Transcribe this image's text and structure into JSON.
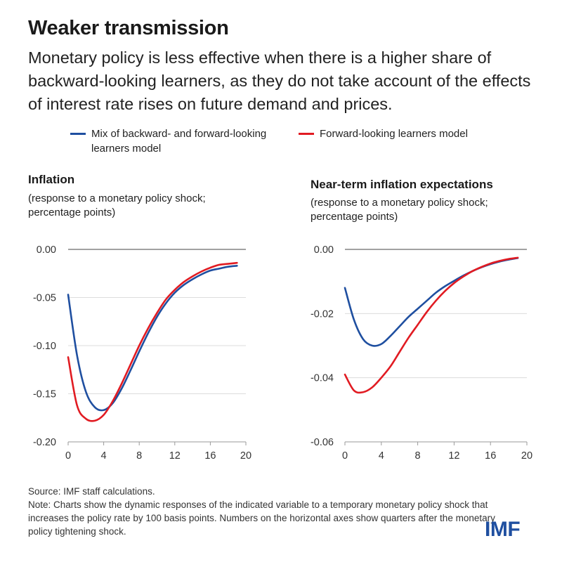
{
  "title": "Weaker transmission",
  "subtitle": "Monetary policy is less effective when there is a higher share of backward-looking learners, as they do not take account of the effects of interest rate rises on future demand and prices.",
  "legend": [
    {
      "label": "Mix of backward- and forward-looking learners model",
      "color": "#1f4fa0"
    },
    {
      "label": "Forward-looking learners model",
      "color": "#e11b22"
    }
  ],
  "panels": [
    {
      "title": "Inflation",
      "subtitle": "(response to a monetary policy shock; percentage points)"
    },
    {
      "title": "Near-term inflation expectations",
      "subtitle": "(response to a monetary policy shock; percentage points)"
    }
  ],
  "chart_data": [
    {
      "type": "line",
      "title": "Inflation",
      "ylabel": "(response to a monetary policy shock; percentage points)",
      "xlim": [
        0,
        20
      ],
      "ylim": [
        -0.2,
        0.0
      ],
      "xticks": [
        0,
        4,
        8,
        12,
        16,
        20
      ],
      "xtick_labels": [
        "0",
        "4",
        "8",
        "12",
        "16",
        "20"
      ],
      "yticks": [
        0.0,
        -0.05,
        -0.1,
        -0.15,
        -0.2
      ],
      "ytick_labels": [
        "0.00",
        "-0.05",
        "-0.10",
        "-0.15",
        "-0.20"
      ],
      "grid": true,
      "x": [
        0,
        1,
        2,
        3,
        4,
        5,
        6,
        7,
        8,
        9,
        10,
        11,
        12,
        13,
        14,
        15,
        16,
        17,
        18,
        19
      ],
      "series": [
        {
          "name": "Mix of backward- and forward-looking learners model",
          "color": "#1f4fa0",
          "values": [
            -0.047,
            -0.11,
            -0.148,
            -0.164,
            -0.167,
            -0.16,
            -0.145,
            -0.126,
            -0.106,
            -0.087,
            -0.07,
            -0.056,
            -0.045,
            -0.037,
            -0.031,
            -0.026,
            -0.022,
            -0.02,
            -0.018,
            -0.017
          ]
        },
        {
          "name": "Forward-looking learners model",
          "color": "#e11b22",
          "values": [
            -0.112,
            -0.162,
            -0.176,
            -0.178,
            -0.172,
            -0.158,
            -0.14,
            -0.12,
            -0.1,
            -0.082,
            -0.066,
            -0.052,
            -0.042,
            -0.034,
            -0.028,
            -0.023,
            -0.019,
            -0.016,
            -0.015,
            -0.014
          ]
        }
      ]
    },
    {
      "type": "line",
      "title": "Near-term inflation expectations",
      "ylabel": "(response to a monetary policy shock; percentage points)",
      "xlim": [
        0,
        20
      ],
      "ylim": [
        -0.06,
        0.0
      ],
      "xticks": [
        0,
        4,
        8,
        12,
        16,
        20
      ],
      "xtick_labels": [
        "0",
        "4",
        "8",
        "12",
        "16",
        "20"
      ],
      "yticks": [
        0.0,
        -0.02,
        -0.04,
        -0.06
      ],
      "ytick_labels": [
        "0.00",
        "-0.02",
        "-0.04",
        "-0.06"
      ],
      "grid": true,
      "x": [
        0,
        1,
        2,
        3,
        4,
        5,
        6,
        7,
        8,
        9,
        10,
        11,
        12,
        13,
        14,
        15,
        16,
        17,
        18,
        19
      ],
      "series": [
        {
          "name": "Mix of backward- and forward-looking learners model",
          "color": "#1f4fa0",
          "values": [
            -0.012,
            -0.022,
            -0.028,
            -0.03,
            -0.0295,
            -0.027,
            -0.024,
            -0.021,
            -0.0185,
            -0.016,
            -0.0135,
            -0.0115,
            -0.0098,
            -0.0082,
            -0.0068,
            -0.0056,
            -0.0046,
            -0.0038,
            -0.0032,
            -0.0027
          ]
        },
        {
          "name": "Forward-looking learners model",
          "color": "#e11b22",
          "values": [
            -0.039,
            -0.044,
            -0.0445,
            -0.043,
            -0.04,
            -0.0365,
            -0.032,
            -0.0275,
            -0.0235,
            -0.0195,
            -0.016,
            -0.013,
            -0.0105,
            -0.0085,
            -0.0068,
            -0.0055,
            -0.0044,
            -0.0036,
            -0.003,
            -0.0026
          ]
        }
      ]
    }
  ],
  "footer": {
    "source": "Source: IMF staff calculations.",
    "note": "Note: Charts show the dynamic responses of the indicated variable to a temporary monetary policy shock that increases the policy rate by 100 basis points. Numbers on the horizontal axes show quarters after the monetary policy tightening shock."
  },
  "logo": "IMF"
}
